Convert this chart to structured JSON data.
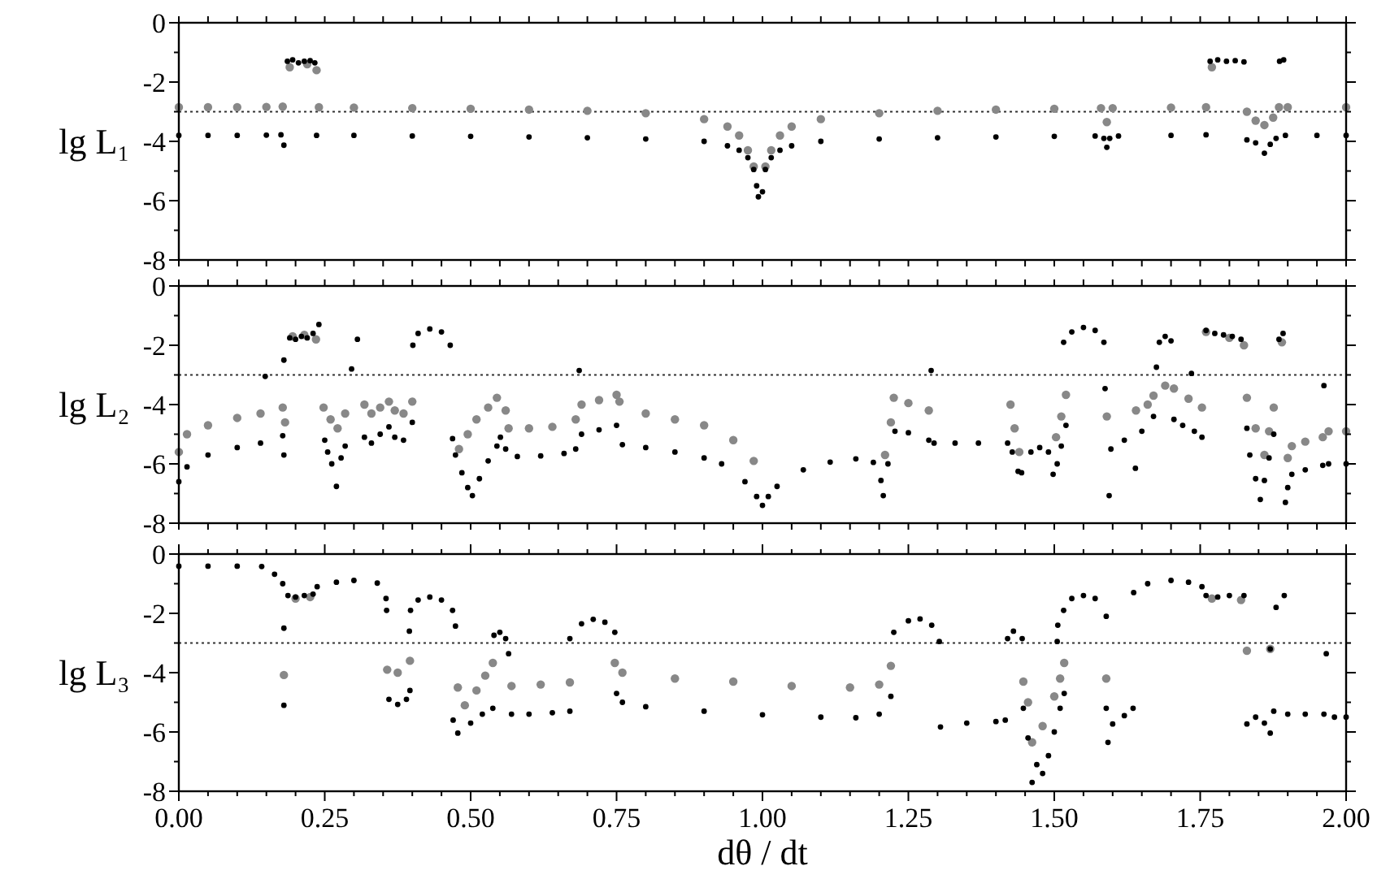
{
  "chart_data": [
    {
      "type": "scatter",
      "ylabel": "lg L₁",
      "marker": "circle",
      "tick_labels": "y",
      "xlim": [
        0,
        2
      ],
      "ylim": [
        -8,
        0
      ],
      "xticks": [
        {
          "value": 0,
          "label": null
        },
        {
          "value": 0.05,
          "label": null
        },
        {
          "value": 0.1,
          "label": null
        },
        {
          "value": 0.15,
          "label": null
        },
        {
          "value": 0.2,
          "label": null
        },
        {
          "value": 0.25,
          "label": null
        },
        {
          "value": 0.3,
          "label": null
        },
        {
          "value": 0.35,
          "label": null
        },
        {
          "value": 0.4,
          "label": null
        },
        {
          "value": 0.45,
          "label": null
        },
        {
          "value": 0.5,
          "label": null
        },
        {
          "value": 0.55,
          "label": null
        },
        {
          "value": 0.6,
          "label": null
        },
        {
          "value": 0.65,
          "label": null
        },
        {
          "value": 0.7,
          "label": null
        },
        {
          "value": 0.75,
          "label": null
        },
        {
          "value": 0.8,
          "label": null
        },
        {
          "value": 0.85,
          "label": null
        },
        {
          "value": 0.9,
          "label": null
        },
        {
          "value": 0.95,
          "label": null
        },
        {
          "value": 1,
          "label": null
        },
        {
          "value": 1.05,
          "label": null
        },
        {
          "value": 1.1,
          "label": null
        },
        {
          "value": 1.15,
          "label": null
        },
        {
          "value": 1.2,
          "label": null
        },
        {
          "value": 1.25,
          "label": null
        },
        {
          "value": 1.3,
          "label": null
        },
        {
          "value": 1.35,
          "label": null
        },
        {
          "value": 1.4,
          "label": null
        },
        {
          "value": 1.45,
          "label": null
        },
        {
          "value": 1.5,
          "label": null
        },
        {
          "value": 1.55,
          "label": null
        },
        {
          "value": 1.6,
          "label": null
        },
        {
          "value": 1.65,
          "label": null
        },
        {
          "value": 1.7,
          "label": null
        },
        {
          "value": 1.75,
          "label": null
        },
        {
          "value": 1.8,
          "label": null
        },
        {
          "value": 1.85,
          "label": null
        },
        {
          "value": 1.9,
          "label": null
        },
        {
          "value": 1.95,
          "label": null
        },
        {
          "value": 2,
          "label": null
        }
      ],
      "yticks": [
        0,
        {
          "value": -1,
          "label": null
        },
        -2,
        {
          "value": -3,
          "label": null
        },
        -4,
        {
          "value": -5,
          "label": null
        },
        -6,
        {
          "value": -7,
          "label": null
        },
        -8
      ],
      "ref_lines": [
        {
          "axis": "y",
          "value": -3,
          "color": "#333333",
          "line_style": "dotted"
        }
      ],
      "series": [
        {
          "color": "#888888",
          "x": [
            0,
            0.05,
            0.1,
            0.15,
            0.178,
            0.19,
            0.22,
            0.236,
            0.24,
            0.3,
            0.4,
            0.5,
            0.6,
            0.7,
            0.8,
            0.9,
            0.94,
            0.96,
            0.975,
            0.985,
            1.005,
            1.015,
            1.03,
            1.05,
            1.1,
            1.2,
            1.3,
            1.4,
            1.5,
            1.58,
            1.59,
            1.6,
            1.7,
            1.76,
            1.77,
            1.83,
            1.845,
            1.86,
            1.875,
            1.885,
            1.9,
            2.0
          ],
          "values": [
            -2.85,
            -2.85,
            -2.85,
            -2.84,
            -2.83,
            -1.5,
            -1.4,
            -1.6,
            -2.85,
            -2.86,
            -2.88,
            -2.9,
            -2.93,
            -2.97,
            -3.05,
            -3.25,
            -3.5,
            -3.8,
            -4.3,
            -4.85,
            -4.85,
            -4.3,
            -3.8,
            -3.5,
            -3.25,
            -3.05,
            -2.97,
            -2.93,
            -2.9,
            -2.88,
            -3.35,
            -2.88,
            -2.86,
            -2.85,
            -1.5,
            -3.0,
            -3.3,
            -3.45,
            -3.2,
            -2.85,
            -2.85,
            -2.85
          ]
        },
        {
          "color": "#000000",
          "x": [
            0,
            0.05,
            0.1,
            0.15,
            0.175,
            0.18,
            0.186,
            0.195,
            0.205,
            0.215,
            0.225,
            0.233,
            0.236,
            0.3,
            0.4,
            0.5,
            0.6,
            0.7,
            0.8,
            0.9,
            0.94,
            0.96,
            0.975,
            0.985,
            0.99,
            0.993,
            1.0,
            1.005,
            1.015,
            1.03,
            1.05,
            1.1,
            1.2,
            1.3,
            1.4,
            1.5,
            1.57,
            1.585,
            1.59,
            1.595,
            1.61,
            1.7,
            1.76,
            1.767,
            1.78,
            1.795,
            1.81,
            1.825,
            1.83,
            1.845,
            1.86,
            1.87,
            1.88,
            1.886,
            1.893,
            1.896,
            1.95,
            2.0
          ],
          "values": [
            -3.8,
            -3.8,
            -3.8,
            -3.79,
            -3.78,
            -4.13,
            -1.3,
            -1.25,
            -1.35,
            -1.3,
            -1.28,
            -1.35,
            -3.8,
            -3.8,
            -3.82,
            -3.83,
            -3.85,
            -3.88,
            -3.92,
            -4.0,
            -4.15,
            -4.3,
            -4.55,
            -4.95,
            -5.5,
            -5.87,
            -5.7,
            -4.95,
            -4.55,
            -4.3,
            -4.15,
            -4.0,
            -3.92,
            -3.88,
            -3.85,
            -3.83,
            -3.82,
            -3.9,
            -4.2,
            -3.9,
            -3.82,
            -3.8,
            -3.78,
            -1.3,
            -1.25,
            -1.3,
            -1.28,
            -1.32,
            -3.95,
            -4.05,
            -4.4,
            -4.1,
            -3.9,
            -1.3,
            -1.25,
            -3.8,
            -3.8,
            -3.8
          ]
        }
      ]
    },
    {
      "type": "scatter",
      "ylabel": "lg L₂",
      "marker": "circle",
      "tick_labels": "y",
      "xlim": [
        0,
        2
      ],
      "ylim": [
        -8,
        0
      ],
      "xticks": [
        {
          "value": 0,
          "label": null
        },
        {
          "value": 0.05,
          "label": null
        },
        {
          "value": 0.1,
          "label": null
        },
        {
          "value": 0.15,
          "label": null
        },
        {
          "value": 0.2,
          "label": null
        },
        {
          "value": 0.25,
          "label": null
        },
        {
          "value": 0.3,
          "label": null
        },
        {
          "value": 0.35,
          "label": null
        },
        {
          "value": 0.4,
          "label": null
        },
        {
          "value": 0.45,
          "label": null
        },
        {
          "value": 0.5,
          "label": null
        },
        {
          "value": 0.55,
          "label": null
        },
        {
          "value": 0.6,
          "label": null
        },
        {
          "value": 0.65,
          "label": null
        },
        {
          "value": 0.7,
          "label": null
        },
        {
          "value": 0.75,
          "label": null
        },
        {
          "value": 0.8,
          "label": null
        },
        {
          "value": 0.85,
          "label": null
        },
        {
          "value": 0.9,
          "label": null
        },
        {
          "value": 0.95,
          "label": null
        },
        {
          "value": 1,
          "label": null
        },
        {
          "value": 1.05,
          "label": null
        },
        {
          "value": 1.1,
          "label": null
        },
        {
          "value": 1.15,
          "label": null
        },
        {
          "value": 1.2,
          "label": null
        },
        {
          "value": 1.25,
          "label": null
        },
        {
          "value": 1.3,
          "label": null
        },
        {
          "value": 1.35,
          "label": null
        },
        {
          "value": 1.4,
          "label": null
        },
        {
          "value": 1.45,
          "label": null
        },
        {
          "value": 1.5,
          "label": null
        },
        {
          "value": 1.55,
          "label": null
        },
        {
          "value": 1.6,
          "label": null
        },
        {
          "value": 1.65,
          "label": null
        },
        {
          "value": 1.7,
          "label": null
        },
        {
          "value": 1.75,
          "label": null
        },
        {
          "value": 1.8,
          "label": null
        },
        {
          "value": 1.85,
          "label": null
        },
        {
          "value": 1.9,
          "label": null
        },
        {
          "value": 1.95,
          "label": null
        },
        {
          "value": 2,
          "label": null
        }
      ],
      "yticks": [
        0,
        {
          "value": -1,
          "label": null
        },
        -2,
        {
          "value": -3,
          "label": null
        },
        -4,
        {
          "value": -5,
          "label": null
        },
        -6,
        {
          "value": -7,
          "label": null
        },
        -8
      ],
      "ref_lines": [
        {
          "axis": "y",
          "value": -3,
          "color": "#333333",
          "line_style": "dotted"
        }
      ],
      "series": [
        {
          "color": "#888888",
          "x": [
            0,
            0.014,
            0.05,
            0.1,
            0.14,
            0.178,
            0.182,
            0.195,
            0.215,
            0.235,
            0.248,
            0.26,
            0.272,
            0.285,
            0.318,
            0.33,
            0.345,
            0.36,
            0.37,
            0.385,
            0.4,
            0.48,
            0.495,
            0.51,
            0.53,
            0.545,
            0.56,
            0.565,
            0.6,
            0.64,
            0.68,
            0.69,
            0.72,
            0.75,
            0.755,
            0.8,
            0.85,
            0.9,
            0.95,
            0.985,
            1.21,
            1.22,
            1.225,
            1.25,
            1.285,
            1.425,
            1.432,
            1.44,
            1.503,
            1.512,
            1.52,
            1.59,
            1.64,
            1.66,
            1.67,
            1.69,
            1.705,
            1.73,
            1.753,
            1.76,
            1.8,
            1.825,
            1.83,
            1.845,
            1.86,
            1.868,
            1.876,
            1.89,
            1.9,
            1.907,
            1.93,
            1.96,
            1.97,
            2.0
          ],
          "values": [
            -5.6,
            -5.0,
            -4.7,
            -4.45,
            -4.3,
            -4.1,
            -4.6,
            -1.7,
            -1.65,
            -1.8,
            -4.1,
            -4.5,
            -4.8,
            -4.3,
            -4.0,
            -4.3,
            -4.1,
            -3.9,
            -4.2,
            -4.3,
            -3.9,
            -5.5,
            -5.0,
            -4.5,
            -4.1,
            -3.77,
            -4.2,
            -4.8,
            -4.8,
            -4.75,
            -4.5,
            -4.0,
            -3.85,
            -3.67,
            -3.9,
            -4.3,
            -4.5,
            -4.7,
            -5.2,
            -5.9,
            -5.7,
            -4.6,
            -3.77,
            -3.95,
            -4.2,
            -4.0,
            -4.8,
            -5.6,
            -5.1,
            -4.4,
            -3.67,
            -4.4,
            -4.2,
            -4.0,
            -3.7,
            -3.36,
            -3.46,
            -3.8,
            -4.1,
            -1.55,
            -1.75,
            -2.0,
            -3.77,
            -4.8,
            -5.7,
            -4.9,
            -4.1,
            -1.9,
            -5.8,
            -5.4,
            -5.25,
            -5.1,
            -4.9,
            -4.9
          ]
        },
        {
          "color": "#000000",
          "x": [
            0,
            0.014,
            0.05,
            0.1,
            0.14,
            0.178,
            0.18,
            0.148,
            0.18,
            0.19,
            0.2,
            0.21,
            0.22,
            0.23,
            0.24,
            0.25,
            0.255,
            0.262,
            0.27,
            0.278,
            0.285,
            0.296,
            0.306,
            0.318,
            0.33,
            0.345,
            0.36,
            0.37,
            0.385,
            0.4,
            0.401,
            0.41,
            0.43,
            0.45,
            0.465,
            0.469,
            0.474,
            0.485,
            0.495,
            0.503,
            0.515,
            0.53,
            0.545,
            0.551,
            0.56,
            0.58,
            0.62,
            0.66,
            0.68,
            0.686,
            0.69,
            0.72,
            0.75,
            0.76,
            0.8,
            0.85,
            0.9,
            0.93,
            0.97,
            0.99,
            1.0,
            1.01,
            1.025,
            1.07,
            1.116,
            1.16,
            1.19,
            1.203,
            1.207,
            1.215,
            1.227,
            1.25,
            1.285,
            1.289,
            1.294,
            1.33,
            1.37,
            1.42,
            1.428,
            1.438,
            1.444,
            1.46,
            1.475,
            1.49,
            1.498,
            1.505,
            1.512,
            1.52,
            1.516,
            1.53,
            1.55,
            1.57,
            1.585,
            1.587,
            1.594,
            1.597,
            1.62,
            1.639,
            1.65,
            1.67,
            1.675,
            1.68,
            1.69,
            1.7,
            1.705,
            1.72,
            1.735,
            1.74,
            1.753,
            1.76,
            1.775,
            1.79,
            1.805,
            1.82,
            1.83,
            1.835,
            1.845,
            1.853,
            1.86,
            1.868,
            1.876,
            1.885,
            1.892,
            1.896,
            1.9,
            1.907,
            1.93,
            1.96,
            1.962,
            1.97,
            2.0
          ],
          "values": [
            -6.6,
            -6.1,
            -5.7,
            -5.45,
            -5.3,
            -5.05,
            -5.7,
            -3.05,
            -2.5,
            -1.75,
            -1.8,
            -1.7,
            -1.75,
            -1.6,
            -1.3,
            -5.2,
            -5.6,
            -6.0,
            -6.76,
            -5.8,
            -5.4,
            -2.8,
            -1.8,
            -5.1,
            -5.3,
            -5.0,
            -4.75,
            -5.1,
            -5.2,
            -4.6,
            -2.0,
            -1.6,
            -1.45,
            -1.55,
            -2.0,
            -5.15,
            -5.7,
            -6.3,
            -6.8,
            -7.07,
            -6.5,
            -5.9,
            -5.4,
            -5.1,
            -5.5,
            -5.75,
            -5.73,
            -5.65,
            -5.5,
            -2.85,
            -5.0,
            -4.85,
            -4.7,
            -5.35,
            -5.45,
            -5.6,
            -5.8,
            -6.0,
            -6.6,
            -7.1,
            -7.4,
            -7.1,
            -6.76,
            -6.2,
            -5.94,
            -5.83,
            -5.95,
            -6.56,
            -7.07,
            -6.0,
            -4.9,
            -4.95,
            -5.2,
            -2.85,
            -5.3,
            -5.3,
            -5.3,
            -5.3,
            -5.6,
            -6.25,
            -6.3,
            -5.6,
            -5.45,
            -5.6,
            -6.35,
            -6.0,
            -5.4,
            -4.7,
            -1.9,
            -1.55,
            -1.4,
            -1.5,
            -1.9,
            -3.46,
            -7.07,
            -5.5,
            -5.2,
            -6.15,
            -4.9,
            -4.4,
            -2.74,
            -1.9,
            -1.7,
            -1.85,
            -4.5,
            -4.7,
            -2.95,
            -4.9,
            -5.1,
            -1.5,
            -1.6,
            -1.65,
            -1.7,
            -1.8,
            -4.8,
            -5.7,
            -6.5,
            -7.2,
            -6.56,
            -5.8,
            -5.0,
            -1.8,
            -1.6,
            -7.3,
            -6.8,
            -6.35,
            -6.2,
            -6.05,
            -3.36,
            -6.0,
            -6.0
          ]
        }
      ]
    },
    {
      "type": "scatter",
      "ylabel": "lg L₃",
      "xlabel": "dθ / dt",
      "marker": "circle",
      "xlim": [
        0,
        2
      ],
      "ylim": [
        -8,
        0
      ],
      "xticks": [
        {
          "value": 0,
          "label": "0.00"
        },
        {
          "value": 0.05,
          "label": null
        },
        {
          "value": 0.1,
          "label": null
        },
        {
          "value": 0.15,
          "label": null
        },
        {
          "value": 0.2,
          "label": null
        },
        {
          "value": 0.25,
          "label": "0.25"
        },
        {
          "value": 0.3,
          "label": null
        },
        {
          "value": 0.35,
          "label": null
        },
        {
          "value": 0.4,
          "label": null
        },
        {
          "value": 0.45,
          "label": null
        },
        {
          "value": 0.5,
          "label": "0.50"
        },
        {
          "value": 0.55,
          "label": null
        },
        {
          "value": 0.6,
          "label": null
        },
        {
          "value": 0.65,
          "label": null
        },
        {
          "value": 0.7,
          "label": null
        },
        {
          "value": 0.75,
          "label": "0.75"
        },
        {
          "value": 0.8,
          "label": null
        },
        {
          "value": 0.85,
          "label": null
        },
        {
          "value": 0.9,
          "label": null
        },
        {
          "value": 0.95,
          "label": null
        },
        {
          "value": 1,
          "label": "1.00"
        },
        {
          "value": 1.05,
          "label": null
        },
        {
          "value": 1.1,
          "label": null
        },
        {
          "value": 1.15,
          "label": null
        },
        {
          "value": 1.2,
          "label": null
        },
        {
          "value": 1.25,
          "label": "1.25"
        },
        {
          "value": 1.3,
          "label": null
        },
        {
          "value": 1.35,
          "label": null
        },
        {
          "value": 1.4,
          "label": null
        },
        {
          "value": 1.45,
          "label": null
        },
        {
          "value": 1.5,
          "label": "1.50"
        },
        {
          "value": 1.55,
          "label": null
        },
        {
          "value": 1.6,
          "label": null
        },
        {
          "value": 1.65,
          "label": null
        },
        {
          "value": 1.7,
          "label": null
        },
        {
          "value": 1.75,
          "label": "1.75"
        },
        {
          "value": 1.8,
          "label": null
        },
        {
          "value": 1.85,
          "label": null
        },
        {
          "value": 1.9,
          "label": null
        },
        {
          "value": 1.95,
          "label": null
        },
        {
          "value": 2,
          "label": "2.00"
        }
      ],
      "yticks": [
        0,
        {
          "value": -1,
          "label": null
        },
        -2,
        {
          "value": -3,
          "label": null
        },
        -4,
        {
          "value": -5,
          "label": null
        },
        -6,
        {
          "value": -7,
          "label": null
        },
        -8
      ],
      "ref_lines": [
        {
          "axis": "y",
          "value": -3,
          "color": "#333333",
          "line_style": "dotted"
        }
      ],
      "series": [
        {
          "color": "#888888",
          "x": [
            0.18,
            0.2,
            0.225,
            0.357,
            0.375,
            0.396,
            0.478,
            0.49,
            0.51,
            0.525,
            0.538,
            0.57,
            0.62,
            0.67,
            0.747,
            0.76,
            0.85,
            0.95,
            1.05,
            1.15,
            1.2,
            1.22,
            1.447,
            1.455,
            1.462,
            1.48,
            1.5,
            1.51,
            1.517,
            1.589,
            1.77,
            1.82,
            1.83,
            1.87
          ],
          "values": [
            -4.08,
            -1.5,
            -1.45,
            -3.9,
            -4.0,
            -3.6,
            -4.5,
            -5.1,
            -4.6,
            -4.1,
            -3.67,
            -4.45,
            -4.4,
            -4.33,
            -3.67,
            -4.0,
            -4.2,
            -4.3,
            -4.45,
            -4.5,
            -4.4,
            -3.77,
            -4.3,
            -5.0,
            -6.35,
            -5.8,
            -4.8,
            -4.2,
            -3.67,
            -4.2,
            -1.5,
            -1.55,
            -3.26,
            -3.2
          ]
        },
        {
          "color": "#000000",
          "x": [
            0,
            0.05,
            0.1,
            0.142,
            0.164,
            0.178,
            0.18,
            0.18,
            0.187,
            0.2,
            0.215,
            0.23,
            0.237,
            0.27,
            0.3,
            0.34,
            0.355,
            0.356,
            0.36,
            0.375,
            0.39,
            0.396,
            0.395,
            0.397,
            0.41,
            0.43,
            0.45,
            0.469,
            0.474,
            0.47,
            0.478,
            0.5,
            0.52,
            0.538,
            0.54,
            0.55,
            0.56,
            0.565,
            0.57,
            0.6,
            0.64,
            0.67,
            0.67,
            0.69,
            0.71,
            0.73,
            0.747,
            0.75,
            0.76,
            0.8,
            0.9,
            1.0,
            1.1,
            1.16,
            1.2,
            1.22,
            1.225,
            1.25,
            1.27,
            1.29,
            1.303,
            1.305,
            1.35,
            1.4,
            1.416,
            1.42,
            1.43,
            1.445,
            1.447,
            1.455,
            1.462,
            1.47,
            1.48,
            1.49,
            1.5,
            1.506,
            1.505,
            1.51,
            1.517,
            1.516,
            1.53,
            1.55,
            1.57,
            1.589,
            1.589,
            1.592,
            1.6,
            1.62,
            1.635,
            1.636,
            1.66,
            1.7,
            1.73,
            1.753,
            1.76,
            1.78,
            1.8,
            1.825,
            1.83,
            1.845,
            1.86,
            1.87,
            1.876,
            1.87,
            1.88,
            1.894,
            1.9,
            1.93,
            1.962,
            1.966,
            1.98,
            2.0
          ],
          "values": [
            -0.41,
            -0.41,
            -0.41,
            -0.42,
            -0.68,
            -1.0,
            -2.5,
            -5.1,
            -1.4,
            -1.45,
            -1.4,
            -1.35,
            -1.1,
            -0.95,
            -0.89,
            -0.98,
            -1.5,
            -1.9,
            -4.9,
            -5.07,
            -4.9,
            -4.6,
            -2.6,
            -1.9,
            -1.55,
            -1.45,
            -1.55,
            -1.9,
            -2.43,
            -5.6,
            -6.04,
            -5.7,
            -5.4,
            -5.2,
            -2.74,
            -2.64,
            -2.85,
            -3.36,
            -5.4,
            -5.4,
            -5.35,
            -5.3,
            -2.85,
            -2.35,
            -2.2,
            -2.3,
            -2.64,
            -4.7,
            -5.0,
            -5.15,
            -5.3,
            -5.42,
            -5.5,
            -5.52,
            -5.4,
            -4.8,
            -2.64,
            -2.25,
            -2.19,
            -2.4,
            -2.95,
            -5.83,
            -5.7,
            -5.65,
            -5.6,
            -2.85,
            -2.6,
            -2.85,
            -5.2,
            -6.2,
            -7.7,
            -7.1,
            -7.4,
            -6.8,
            -6.0,
            -2.4,
            -2.95,
            -5.2,
            -4.7,
            -1.9,
            -1.5,
            -1.4,
            -1.5,
            -2.1,
            -5.2,
            -6.35,
            -5.73,
            -5.45,
            -5.2,
            -1.3,
            -1.0,
            -0.89,
            -0.95,
            -1.1,
            -1.4,
            -1.45,
            -1.4,
            -1.4,
            -5.73,
            -5.5,
            -5.7,
            -6.04,
            -5.3,
            -3.2,
            -1.8,
            -1.4,
            -5.4,
            -5.4,
            -5.4,
            -3.36,
            -5.5,
            -5.5
          ]
        }
      ]
    }
  ]
}
